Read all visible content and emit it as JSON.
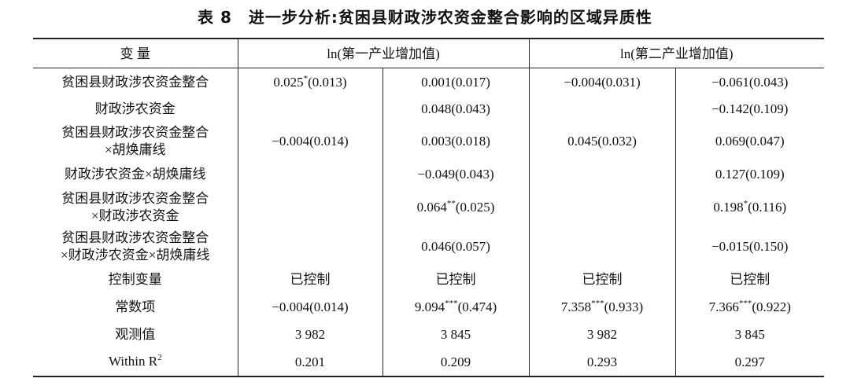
{
  "title": "表 8　进一步分析:贫困县财政涉农资金整合影响的区域异质性",
  "table": {
    "header": [
      "变 量",
      "ln(第一产业增加值)",
      "ln(第二产业增加值)"
    ],
    "rows": [
      [
        "贫困县财政涉农资金整合",
        {
          "main": "0.025",
          "sup": "*",
          "tail": "(0.013)"
        },
        "0.001(0.017)",
        "−0.004(0.031)",
        "−0.061(0.043)"
      ],
      [
        "财政涉农资金",
        null,
        "0.048(0.043)",
        null,
        "−0.142(0.109)"
      ],
      [
        [
          "贫困县财政涉农资金整合",
          "×胡焕庸线"
        ],
        "−0.004(0.014)",
        "0.003(0.018)",
        "0.045(0.032)",
        "0.069(0.047)"
      ],
      [
        "财政涉农资金×胡焕庸线",
        null,
        "−0.049(0.043)",
        null,
        "0.127(0.109)"
      ],
      [
        [
          "贫困县财政涉农资金整合",
          "×财政涉农资金"
        ],
        null,
        {
          "main": "0.064",
          "sup": "**",
          "tail": "(0.025)"
        },
        null,
        {
          "main": "0.198",
          "sup": "*",
          "tail": "(0.116)"
        }
      ],
      [
        [
          "贫困县财政涉农资金整合",
          "×财政涉农资金×胡焕庸线"
        ],
        null,
        "0.046(0.057)",
        null,
        "−0.015(0.150)"
      ],
      [
        "控制变量",
        "已控制",
        "已控制",
        "已控制",
        "已控制"
      ],
      [
        "常数项",
        "−0.004(0.014)",
        {
          "main": "9.094",
          "sup": "***",
          "tail": "(0.474)"
        },
        {
          "main": "7.358",
          "sup": "***",
          "tail": "(0.933)"
        },
        {
          "main": "7.366",
          "sup": "***",
          "tail": "(0.922)"
        }
      ],
      [
        "观测值",
        "3 982",
        "3 845",
        "3 982",
        "3 845"
      ],
      [
        {
          "main": "Within R",
          "sup": "2"
        },
        "0.201",
        "0.209",
        "0.293",
        "0.297"
      ]
    ]
  }
}
